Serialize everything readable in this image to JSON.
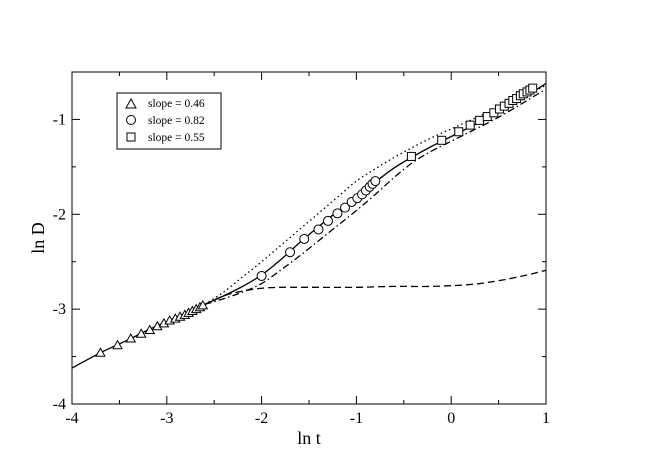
{
  "chart_data": {
    "type": "line",
    "xlabel": "ln t",
    "ylabel": "ln D",
    "xlim": [
      -4,
      1
    ],
    "ylim": [
      -4,
      -0.5
    ],
    "x_ticks": [
      -4,
      -3,
      -2,
      -1,
      0,
      1
    ],
    "y_ticks": [
      -4,
      -3,
      -2,
      -1
    ],
    "x_tick_labels": [
      "-4",
      "-3",
      "-2",
      "-1",
      "0",
      "1"
    ],
    "y_tick_labels": [
      "-4",
      "-3",
      "-2",
      "-1"
    ],
    "grid": false,
    "legend_position": "top-left",
    "legend": [
      {
        "marker": "triangle",
        "label": "slope = 0.46"
      },
      {
        "marker": "circle",
        "label": "slope = 0.82"
      },
      {
        "marker": "square",
        "label": "slope = 0.55"
      }
    ],
    "series": [
      {
        "style": "solid",
        "x": [
          -4.0,
          -3.7,
          -3.4,
          -3.2,
          -3.0,
          -2.8,
          -2.6,
          -2.4,
          -2.2,
          -2.0,
          -1.8,
          -1.6,
          -1.4,
          -1.2,
          -1.0,
          -0.8,
          -0.6,
          -0.4,
          -0.2,
          0.0,
          0.2,
          0.4,
          0.6,
          0.8,
          1.0
        ],
        "y": [
          -3.62,
          -3.46,
          -3.32,
          -3.22,
          -3.13,
          -3.04,
          -2.95,
          -2.86,
          -2.76,
          -2.64,
          -2.48,
          -2.3,
          -2.13,
          -1.97,
          -1.82,
          -1.66,
          -1.51,
          -1.39,
          -1.28,
          -1.18,
          -1.08,
          -0.98,
          -0.87,
          -0.75,
          -0.62
        ]
      },
      {
        "style": "dashed",
        "x": [
          -2.6,
          -2.4,
          -2.2,
          -2.0,
          -1.8,
          -1.6,
          -1.4,
          -1.0,
          -0.6,
          -0.2,
          0.2,
          0.5,
          0.8,
          1.0
        ],
        "y": [
          -2.95,
          -2.86,
          -2.81,
          -2.78,
          -2.77,
          -2.77,
          -2.77,
          -2.77,
          -2.76,
          -2.76,
          -2.74,
          -2.7,
          -2.64,
          -2.59
        ]
      },
      {
        "style": "dotted",
        "x": [
          -2.6,
          -2.4,
          -2.2,
          -2.0,
          -1.8,
          -1.6,
          -1.4,
          -1.2,
          -1.0,
          -0.8,
          -0.6,
          -0.4,
          -0.2,
          0.0,
          0.2,
          0.4,
          0.6,
          0.8,
          1.0
        ],
        "y": [
          -2.95,
          -2.82,
          -2.66,
          -2.5,
          -2.33,
          -2.16,
          -1.99,
          -1.82,
          -1.65,
          -1.52,
          -1.4,
          -1.29,
          -1.19,
          -1.1,
          -1.01,
          -0.92,
          -0.83,
          -0.74,
          -0.64
        ]
      },
      {
        "style": "dashdot",
        "x": [
          -2.6,
          -2.4,
          -2.2,
          -2.0,
          -1.8,
          -1.6,
          -1.4,
          -1.2,
          -1.0,
          -0.8,
          -0.6,
          -0.4,
          -0.2,
          0.0,
          0.2,
          0.4,
          0.6,
          0.8,
          1.0
        ],
        "y": [
          -2.95,
          -2.89,
          -2.82,
          -2.73,
          -2.59,
          -2.44,
          -2.28,
          -2.12,
          -1.96,
          -1.79,
          -1.61,
          -1.45,
          -1.33,
          -1.23,
          -1.13,
          -1.03,
          -0.92,
          -0.8,
          -0.68
        ]
      }
    ],
    "markers": [
      {
        "shape": "triangle",
        "x": [
          -3.7,
          -3.52,
          -3.38,
          -3.27,
          -3.18,
          -3.1,
          -3.03,
          -2.97,
          -2.91,
          -2.86,
          -2.81,
          -2.77,
          -2.73,
          -2.69,
          -2.65,
          -2.62
        ],
        "y": [
          -3.46,
          -3.38,
          -3.31,
          -3.26,
          -3.22,
          -3.18,
          -3.15,
          -3.12,
          -3.1,
          -3.08,
          -3.06,
          -3.04,
          -3.02,
          -3.0,
          -2.98,
          -2.96
        ]
      },
      {
        "shape": "circle",
        "x": [
          -2.0,
          -1.7,
          -1.55,
          -1.4,
          -1.3,
          -1.2,
          -1.12,
          -1.05,
          -0.99,
          -0.94,
          -0.9,
          -0.86,
          -0.83,
          -0.8
        ],
        "y": [
          -2.65,
          -2.4,
          -2.26,
          -2.16,
          -2.07,
          -1.99,
          -1.93,
          -1.87,
          -1.83,
          -1.79,
          -1.75,
          -1.71,
          -1.68,
          -1.65
        ]
      },
      {
        "shape": "square",
        "x": [
          -0.42,
          -0.1,
          0.08,
          0.2,
          0.3,
          0.38,
          0.45,
          0.51,
          0.56,
          0.61,
          0.65,
          0.69,
          0.73,
          0.76,
          0.8,
          0.83,
          0.86
        ],
        "y": [
          -1.39,
          -1.22,
          -1.13,
          -1.06,
          -1.01,
          -0.97,
          -0.93,
          -0.89,
          -0.86,
          -0.83,
          -0.8,
          -0.78,
          -0.75,
          -0.73,
          -0.71,
          -0.69,
          -0.67
        ]
      }
    ]
  }
}
